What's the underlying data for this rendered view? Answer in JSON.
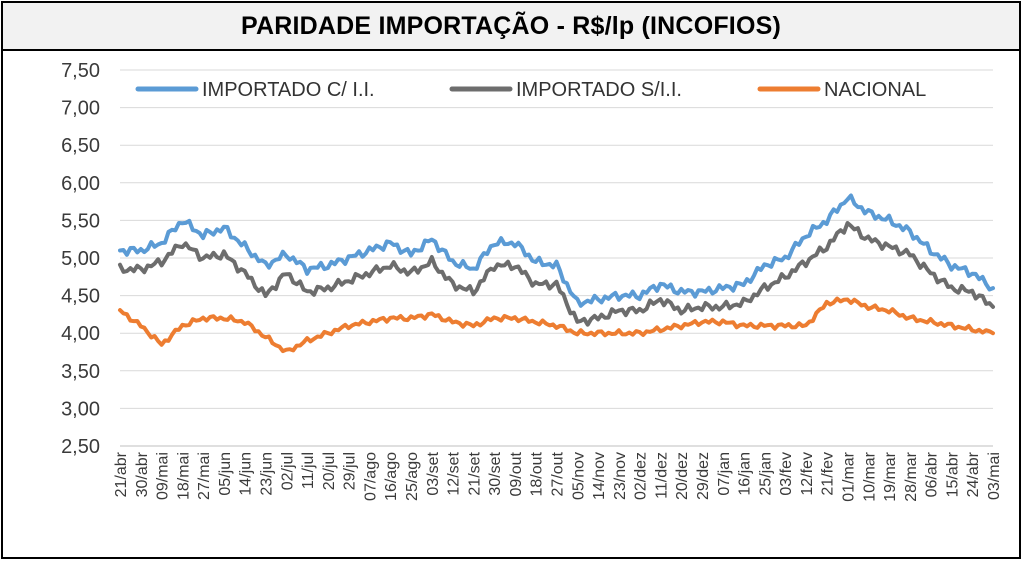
{
  "colors": {
    "c_ii": "#5b9bd5",
    "s_ii": "#6d6d6d",
    "nacional": "#ed7d31",
    "grid": "#d9d9d9"
  },
  "chart_data": {
    "type": "line",
    "title": "PARIDADE IMPORTAÇÃO - R$/lp (INCOFIOS)",
    "xlabel": "",
    "ylabel": "",
    "ylim": [
      2.5,
      7.5
    ],
    "yticks": [
      "7,50",
      "7,00",
      "6,50",
      "6,00",
      "5,50",
      "5,00",
      "4,50",
      "4,00",
      "3,50",
      "3,00",
      "2,50"
    ],
    "ytick_values": [
      7.5,
      7.0,
      6.5,
      6.0,
      5.5,
      5.0,
      4.5,
      4.0,
      3.5,
      3.0,
      2.5
    ],
    "categories": [
      "21/abr",
      "30/abr",
      "09/mai",
      "18/mai",
      "27/mai",
      "05/jun",
      "14/jun",
      "23/jun",
      "02/jul",
      "11/jul",
      "20/jul",
      "29/jul",
      "07/ago",
      "16/ago",
      "25/ago",
      "03/set",
      "12/set",
      "21/set",
      "30/set",
      "09/out",
      "18/out",
      "27/out",
      "05/nov",
      "14/nov",
      "23/nov",
      "02/dez",
      "11/dez",
      "20/dez",
      "29/dez",
      "07/jan",
      "16/jan",
      "25/jan",
      "03/fev",
      "12/fev",
      "21/fev",
      "01/mar",
      "10/mar",
      "19/mar",
      "28/mar",
      "06/abr",
      "15/abr",
      "24/abr",
      "03/mai"
    ],
    "legend_position": "top",
    "series": [
      {
        "name": "IMPORTADO C/ I.I.",
        "color_key": "c_ii",
        "values": [
          5.1,
          5.1,
          5.2,
          5.5,
          5.3,
          5.4,
          5.15,
          4.9,
          5.05,
          4.85,
          4.9,
          5.0,
          5.1,
          5.2,
          5.05,
          5.25,
          4.95,
          4.85,
          5.2,
          5.2,
          4.95,
          4.9,
          4.4,
          4.45,
          4.5,
          4.5,
          4.65,
          4.55,
          4.55,
          4.6,
          4.65,
          4.9,
          5.0,
          5.3,
          5.5,
          5.8,
          5.6,
          5.5,
          5.35,
          5.1,
          4.9,
          4.8,
          4.6
        ]
      },
      {
        "name": "IMPORTADO S/I.I.",
        "color_key": "s_ii",
        "values": [
          4.85,
          4.85,
          4.95,
          5.2,
          5.0,
          5.05,
          4.8,
          4.5,
          4.8,
          4.55,
          4.6,
          4.7,
          4.8,
          4.9,
          4.8,
          4.95,
          4.65,
          4.55,
          4.9,
          4.9,
          4.65,
          4.65,
          4.15,
          4.2,
          4.3,
          4.3,
          4.45,
          4.3,
          4.35,
          4.35,
          4.4,
          4.6,
          4.75,
          4.95,
          5.15,
          5.45,
          5.25,
          5.15,
          5.05,
          4.8,
          4.6,
          4.55,
          4.35
        ]
      },
      {
        "name": "NACIONAL",
        "color_key": "nacional",
        "values": [
          4.3,
          4.1,
          3.85,
          4.1,
          4.2,
          4.2,
          4.15,
          3.95,
          3.75,
          3.9,
          4.0,
          4.1,
          4.15,
          4.2,
          4.2,
          4.25,
          4.15,
          4.1,
          4.2,
          4.2,
          4.15,
          4.1,
          4.0,
          4.0,
          4.0,
          4.0,
          4.05,
          4.1,
          4.15,
          4.15,
          4.1,
          4.1,
          4.1,
          4.1,
          4.4,
          4.45,
          4.35,
          4.3,
          4.2,
          4.15,
          4.1,
          4.05,
          4.0
        ]
      }
    ]
  }
}
